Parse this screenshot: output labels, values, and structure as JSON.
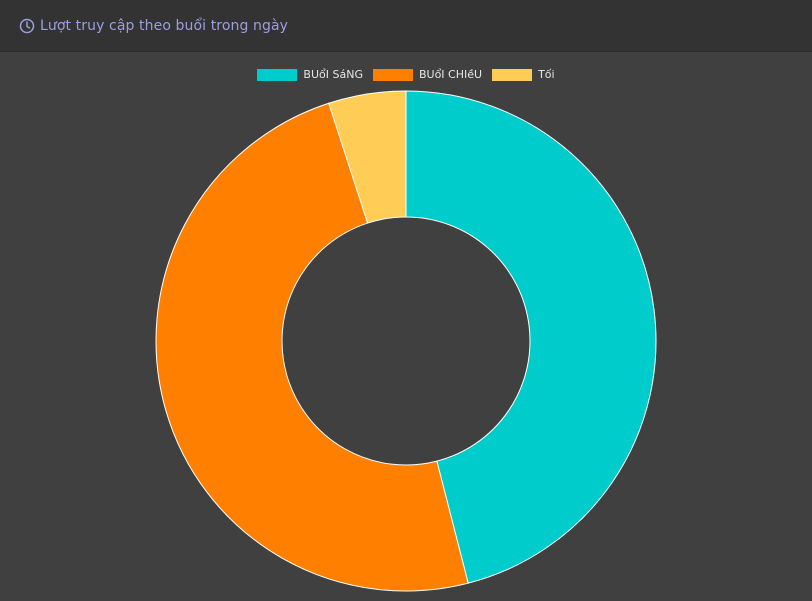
{
  "header": {
    "title": "Lượt truy cập theo buổi trong ngày",
    "icon": "clock-icon"
  },
  "colors": {
    "background": "#404040",
    "header_background": "#333333",
    "title": "#9a9fe0"
  },
  "chart_data": {
    "type": "doughnut",
    "title": "",
    "categories": [
      "Buổi Sáng",
      "Buổi Chiều",
      "Tối"
    ],
    "legend_labels": [
      "BUổI SáNG",
      "BUổI CHIềU",
      "Tối"
    ],
    "values": [
      46,
      49,
      5
    ],
    "colors": [
      "#00cccc",
      "#ff8000",
      "#ffcc55"
    ],
    "legend_position": "top"
  }
}
